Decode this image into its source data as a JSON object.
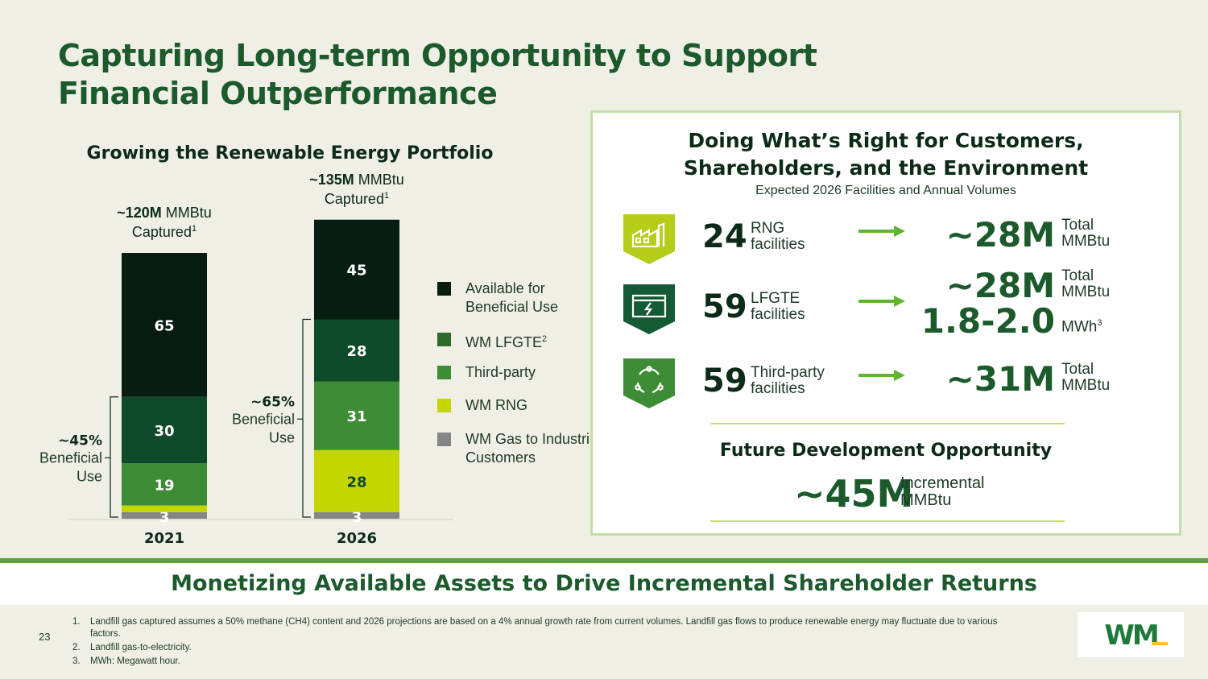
{
  "header": {
    "title_line1": "Capturing Long-term Opportunity to Support",
    "title_line2": "Financial Outperformance"
  },
  "chart_data": {
    "type": "bar",
    "stacked": true,
    "title": "Growing the Renewable Energy Portfolio",
    "categories": [
      "2021",
      "2026"
    ],
    "series": [
      {
        "name": "WM Gas to Industrial Customers",
        "color": "#858585",
        "values": [
          3,
          3
        ]
      },
      {
        "name": "WM RNG",
        "color": "#c3d600",
        "values": [
          3,
          28
        ]
      },
      {
        "name": "Third-party",
        "color": "#3e8c36",
        "values": [
          19,
          31
        ]
      },
      {
        "name": "WM LFGTE",
        "color": "#0f4a2a",
        "values": [
          30,
          28
        ]
      },
      {
        "name": "Available for Beneficial Use",
        "color": "#071d12",
        "values": [
          65,
          45
        ]
      }
    ],
    "legend_order": [
      {
        "name": "Available for Beneficial Use",
        "sup": "",
        "color": "#071d12"
      },
      {
        "name": "WM LFGTE",
        "sup": "2",
        "color": "#2e6b2a"
      },
      {
        "name": "Third-party",
        "sup": "",
        "color": "#3e8c36"
      },
      {
        "name": "WM RNG",
        "sup": "",
        "color": "#c3d600"
      },
      {
        "name": "WM Gas to Industrial Customers",
        "sup": "",
        "color": "#858585"
      }
    ],
    "totals": [
      {
        "bold": "~120M",
        "unit": " MMBtu",
        "captured": "Captured",
        "sup": "1"
      },
      {
        "bold": "~135M",
        "unit": " MMBtu",
        "captured": "Captured",
        "sup": "1"
      }
    ],
    "beneficial_use": [
      {
        "pct": "~45%",
        "line1": "Beneficial",
        "line2": "Use"
      },
      {
        "pct": "~65%",
        "line1": "Beneficial",
        "line2": "Use"
      }
    ],
    "legend": "right"
  },
  "panel": {
    "title_line1": "Doing What’s Right for Customers,",
    "title_line2": "Shareholders, and the Environment",
    "subtitle": "Expected 2026 Facilities and Annual Volumes",
    "rows": [
      {
        "icon": "rng-facility-icon",
        "icon_color": "#b5cc18",
        "count": "24",
        "label_line1": "RNG",
        "label_line2": "facilities",
        "value": "~28M",
        "unit_line1": "Total",
        "unit_line2": "MMBtu",
        "value2": "",
        "unit2": "",
        "unit2_sup": ""
      },
      {
        "icon": "lfgte-facility-icon",
        "icon_color": "#145a35",
        "count": "59",
        "label_line1": "LFGTE",
        "label_line2": "facilities",
        "value": "~28M",
        "unit_line1": "Total",
        "unit_line2": "MMBtu",
        "value2": "1.8-2.0",
        "unit2": "MWh",
        "unit2_sup": "3"
      },
      {
        "icon": "recycle-cycle-icon",
        "icon_color": "#3e8c36",
        "count": "59",
        "label_line1": "Third-party",
        "label_line2": "facilities",
        "value": "~31M",
        "unit_line1": "Total",
        "unit_line2": "MMBtu",
        "value2": "",
        "unit2": "",
        "unit2_sup": ""
      }
    ],
    "future_title": "Future Development Opportunity",
    "future_value": "~45M",
    "future_label_line1": "Incremental",
    "future_label_line2": "MMBtu"
  },
  "banner": "Monetizing Available Assets to Drive Incremental Shareholder Returns",
  "page_number": "23",
  "footnotes": [
    {
      "num": "1.",
      "text": "Landfill gas captured assumes a 50% methane (CH4) content and 2026 projections are based on a 4% annual growth rate from current volumes. Landfill gas flows to produce renewable energy may fluctuate due to various factors."
    },
    {
      "num": "2.",
      "text": "Landfill gas-to-electricity."
    },
    {
      "num": "3.",
      "text": "MWh: Megawatt hour."
    }
  ],
  "logo": {
    "text": "WM",
    "color": "#1f7a3a",
    "accent": "#ffc72c"
  }
}
